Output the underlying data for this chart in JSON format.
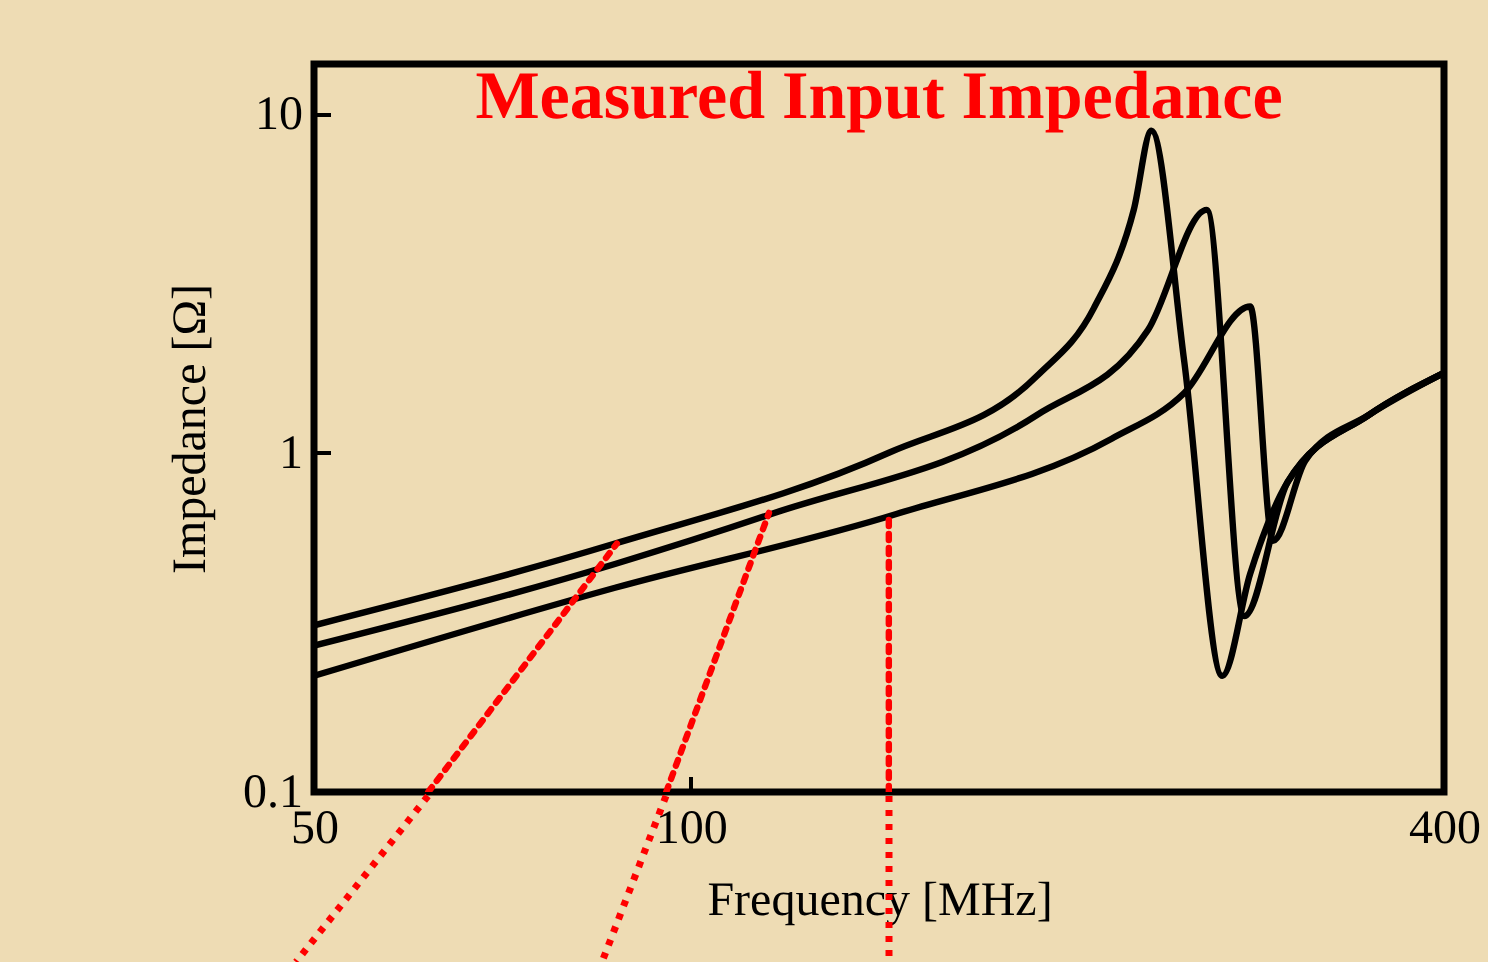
{
  "chart_data": {
    "type": "line",
    "title": "Measured Input Impedance",
    "xlabel": "Frequency [MHz]",
    "ylabel": "Impedance [Ω]",
    "log": "xy",
    "grid": false,
    "line_style": "solid",
    "marker": "none",
    "xlim": [
      50,
      400
    ],
    "ylim": [
      0.1,
      14
    ],
    "xticks": [
      50,
      100,
      400
    ],
    "yticks": [
      0.1,
      1,
      10
    ],
    "series": [
      {
        "color": "#000000",
        "x": [
          50,
          87,
          144,
          189,
          210,
          226,
          233.5,
          248,
          266,
          280,
          300,
          348,
          400
        ],
        "values": [
          0.31,
          0.54,
          1.0,
          1.68,
          2.67,
          5.2,
          8.9,
          1.86,
          0.22,
          0.44,
          0.82,
          1.29,
          1.72
        ]
      },
      {
        "color": "#000000",
        "x": [
          50,
          87,
          116,
          189,
          232,
          258.5,
          277,
          300,
          348,
          400
        ],
        "values": [
          0.27,
          0.47,
          0.66,
          1.29,
          2.3,
          5.2,
          0.33,
          0.82,
          1.29,
          1.72
        ]
      },
      {
        "color": "#000000",
        "x": [
          50,
          87,
          146,
          217,
          248,
          280,
          292,
          310,
          348,
          400
        ],
        "values": [
          0.22,
          0.4,
          0.66,
          1.1,
          1.5,
          2.7,
          0.55,
          0.95,
          1.29,
          1.72
        ]
      },
      {
        "color": "#ff0000",
        "line_style": "dotted",
        "x": [
          61.7,
          87.3
        ],
        "values": [
          0.1,
          0.54
        ]
      },
      {
        "color": "#ff0000",
        "line_style": "dotted",
        "x": [
          95.6,
          115.5
        ],
        "values": [
          0.1,
          0.665
        ]
      },
      {
        "color": "#ff0000",
        "line_style": "dotted",
        "x": [
          144,
          144
        ],
        "values": [
          0.1,
          0.665
        ]
      }
    ]
  }
}
